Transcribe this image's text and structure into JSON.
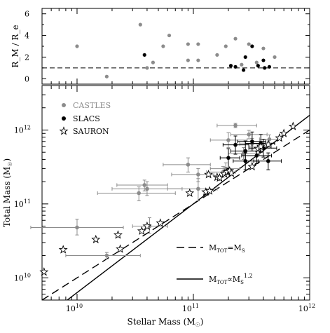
{
  "chart_data": [
    {
      "type": "scatter",
      "panel": "top",
      "ylabel": "R_M / R_e",
      "yscale": "linear",
      "xscale": "log",
      "ylim": [
        -0.5,
        6.5
      ],
      "xlim": [
        5000000000.0,
        1000000000000.0
      ],
      "ticks_y": [
        "6",
        "4",
        "2",
        "0"
      ],
      "reference_line": {
        "y": 1,
        "style": "dashed"
      },
      "series": [
        {
          "name": "CASTLES",
          "color": "#8c8c8c",
          "points": [
            {
              "x": 10000000000.0,
              "y": 3.0
            },
            {
              "x": 18000000000.0,
              "y": 0.2
            },
            {
              "x": 35000000000.0,
              "y": 5.0
            },
            {
              "x": 40000000000.0,
              "y": 1.0
            },
            {
              "x": 45000000000.0,
              "y": 1.5
            },
            {
              "x": 55000000000.0,
              "y": 3.0
            },
            {
              "x": 62000000000.0,
              "y": 4.0
            },
            {
              "x": 90000000000.0,
              "y": 3.2
            },
            {
              "x": 90000000000.0,
              "y": 1.7
            },
            {
              "x": 110000000000.0,
              "y": 3.2
            },
            {
              "x": 110000000000.0,
              "y": 1.7
            },
            {
              "x": 160000000000.0,
              "y": 2.2
            },
            {
              "x": 190000000000.0,
              "y": 3.0
            },
            {
              "x": 230000000000.0,
              "y": 3.7
            },
            {
              "x": 260000000000.0,
              "y": 1.3
            },
            {
              "x": 300000000000.0,
              "y": 3.2
            },
            {
              "x": 350000000000.0,
              "y": 1.5
            },
            {
              "x": 400000000000.0,
              "y": 2.8
            },
            {
              "x": 500000000000.0,
              "y": 2.0
            }
          ]
        },
        {
          "name": "SLACS",
          "color": "#000000",
          "points": [
            {
              "x": 38000000000.0,
              "y": 2.2
            },
            {
              "x": 210000000000.0,
              "y": 1.2
            },
            {
              "x": 230000000000.0,
              "y": 1.1
            },
            {
              "x": 270000000000.0,
              "y": 0.8
            },
            {
              "x": 280000000000.0,
              "y": 2.0
            },
            {
              "x": 320000000000.0,
              "y": 3.0
            },
            {
              "x": 360000000000.0,
              "y": 1.2
            },
            {
              "x": 400000000000.0,
              "y": 1.7
            },
            {
              "x": 410000000000.0,
              "y": 1.0
            },
            {
              "x": 450000000000.0,
              "y": 1.1
            }
          ]
        }
      ]
    },
    {
      "type": "scatter",
      "panel": "main",
      "xlabel_main": "Stellar Mass",
      "xlabel_unit": "(M",
      "xlabel_sub": "☉",
      "ylabel_main": "Total Mass",
      "ylabel_unit": "(M",
      "ylabel_sub": "☉",
      "xscale": "log",
      "yscale": "log",
      "xlim": [
        5000000000.0,
        1000000000000.0
      ],
      "ylim": [
        5000000000.0,
        4000000000000.0
      ],
      "ticks_x": [
        {
          "value": 10000000000.0,
          "base": "10",
          "exp": "10"
        },
        {
          "value": 100000000000.0,
          "base": "10",
          "exp": "11"
        },
        {
          "value": 1000000000000.0,
          "base": "10",
          "exp": "12"
        }
      ],
      "ticks_y": [
        {
          "value": 10000000000.0,
          "base": "10",
          "exp": "10"
        },
        {
          "value": 100000000000.0,
          "base": "10",
          "exp": "11"
        },
        {
          "value": 1000000000000.0,
          "base": "10",
          "exp": "12"
        }
      ],
      "legend": [
        {
          "name": "CASTLES",
          "marker": "dot",
          "color": "#8c8c8c"
        },
        {
          "name": "SLACS",
          "marker": "dot",
          "color": "#000000"
        },
        {
          "name": "SAURON",
          "marker": "star",
          "color": "#000000"
        }
      ],
      "series": [
        {
          "name": "CASTLES",
          "color": "#8c8c8c",
          "points": [
            {
              "x": 10000000000.0,
              "y": 48000000000.0,
              "xerr": [
                4000000000.0,
                25000000000.0
              ],
              "yerr": [
                38000000000.0,
                62000000000.0
              ]
            },
            {
              "x": 18000000000.0,
              "y": 20000000000.0,
              "xerr": [
                8000000000.0,
                35000000000.0
              ],
              "yerr": [
                18000000000.0,
                22000000000.0
              ]
            },
            {
              "x": 34000000000.0,
              "y": 140000000000.0,
              "xerr": [
                15000000000.0,
                70000000000.0
              ],
              "yerr": [
                110000000000.0,
                170000000000.0
              ]
            },
            {
              "x": 38000000000.0,
              "y": 180000000000.0,
              "xerr": [
                22000000000.0,
                60000000000.0
              ],
              "yerr": [
                150000000000.0,
                210000000000.0
              ]
            },
            {
              "x": 40000000000.0,
              "y": 160000000000.0,
              "xerr": [
                20000000000.0,
                80000000000.0
              ],
              "yerr": [
                130000000000.0,
                200000000000.0
              ]
            },
            {
              "x": 42000000000.0,
              "y": 50000000000.0,
              "xerr": [
                30000000000.0,
                60000000000.0
              ],
              "yerr": [
                40000000000.0,
                65000000000.0
              ]
            },
            {
              "x": 90000000000.0,
              "y": 340000000000.0,
              "xerr": [
                55000000000.0,
                140000000000.0
              ],
              "yerr": [
                270000000000.0,
                420000000000.0
              ]
            },
            {
              "x": 110000000000.0,
              "y": 250000000000.0,
              "xerr": [
                65000000000.0,
                150000000000.0
              ],
              "yerr": [
                200000000000.0,
                300000000000.0
              ]
            },
            {
              "x": 110000000000.0,
              "y": 160000000000.0,
              "xerr": [
                60000000000.0,
                160000000000.0
              ],
              "yerr": [
                110000000000.0,
                220000000000.0
              ]
            },
            {
              "x": 180000000000.0,
              "y": 270000000000.0,
              "xerr": [
                130000000000.0,
                230000000000.0
              ],
              "yerr": [
                230000000000.0,
                320000000000.0
              ]
            },
            {
              "x": 190000000000.0,
              "y": 300000000000.0,
              "xerr": [
                140000000000.0,
                250000000000.0
              ],
              "yerr": [
                250000000000.0,
                360000000000.0
              ]
            },
            {
              "x": 200000000000.0,
              "y": 730000000000.0,
              "xerr": [
                140000000000.0,
                290000000000.0
              ],
              "yerr": [
                580000000000.0,
                920000000000.0
              ]
            },
            {
              "x": 230000000000.0,
              "y": 1150000000000.0,
              "xerr": [
                160000000000.0,
                350000000000.0
              ],
              "yerr": [
                1080000000000.0,
                1230000000000.0
              ]
            },
            {
              "x": 270000000000.0,
              "y": 480000000000.0,
              "xerr": [
                200000000000.0,
                370000000000.0
              ],
              "yerr": [
                400000000000.0,
                580000000000.0
              ]
            },
            {
              "x": 300000000000.0,
              "y": 870000000000.0,
              "xerr": [
                210000000000.0,
                430000000000.0
              ],
              "yerr": [
                760000000000.0,
                990000000000.0
              ]
            },
            {
              "x": 320000000000.0,
              "y": 650000000000.0,
              "xerr": [
                250000000000.0,
                420000000000.0
              ],
              "yerr": [
                550000000000.0,
                770000000000.0
              ]
            },
            {
              "x": 380000000000.0,
              "y": 590000000000.0,
              "xerr": [
                300000000000.0,
                470000000000.0
              ],
              "yerr": [
                500000000000.0,
                700000000000.0
              ]
            },
            {
              "x": 450000000000.0,
              "y": 750000000000.0,
              "xerr": [
                370000000000.0,
                540000000000.0
              ],
              "yerr": [
                650000000000.0,
                860000000000.0
              ]
            }
          ]
        },
        {
          "name": "SLACS",
          "color": "#000000",
          "points": [
            {
              "x": 200000000000.0,
              "y": 420000000000.0,
              "xerr": [
                170000000000.0,
                250000000000.0
              ],
              "yerr": [
                300000000000.0,
                560000000000.0
              ]
            },
            {
              "x": 230000000000.0,
              "y": 630000000000.0,
              "xerr": [
                180000000000.0,
                300000000000.0
              ],
              "yerr": [
                470000000000.0,
                830000000000.0
              ]
            },
            {
              "x": 280000000000.0,
              "y": 520000000000.0,
              "xerr": [
                210000000000.0,
                370000000000.0
              ],
              "yerr": [
                380000000000.0,
                710000000000.0
              ]
            },
            {
              "x": 280000000000.0,
              "y": 380000000000.0,
              "xerr": [
                220000000000.0,
                360000000000.0
              ],
              "yerr": [
                290000000000.0,
                490000000000.0
              ]
            },
            {
              "x": 320000000000.0,
              "y": 700000000000.0,
              "xerr": [
                240000000000.0,
                420000000000.0
              ],
              "yerr": [
                520000000000.0,
                940000000000.0
              ]
            },
            {
              "x": 350000000000.0,
              "y": 450000000000.0,
              "xerr": [
                260000000000.0,
                470000000000.0
              ],
              "yerr": [
                350000000000.0,
                580000000000.0
              ]
            },
            {
              "x": 380000000000.0,
              "y": 660000000000.0,
              "xerr": [
                280000000000.0,
                500000000000.0
              ],
              "yerr": [
                500000000000.0,
                870000000000.0
              ]
            },
            {
              "x": 400000000000.0,
              "y": 570000000000.0,
              "xerr": [
                300000000000.0,
                520000000000.0
              ],
              "yerr": [
                430000000000.0,
                750000000000.0
              ]
            },
            {
              "x": 440000000000.0,
              "y": 380000000000.0,
              "xerr": [
                330000000000.0,
                570000000000.0
              ],
              "yerr": [
                290000000000.0,
                490000000000.0
              ]
            }
          ]
        },
        {
          "name": "SAURON",
          "color": "#000000",
          "marker": "star",
          "points": [
            {
              "x": 5200000000.0,
              "y": 12000000000.0
            },
            {
              "x": 7600000000.0,
              "y": 24000000000.0
            },
            {
              "x": 14500000000.0,
              "y": 33000000000.0
            },
            {
              "x": 22500000000.0,
              "y": 38000000000.0
            },
            {
              "x": 23500000000.0,
              "y": 24500000000.0
            },
            {
              "x": 36000000000.0,
              "y": 43000000000.0
            },
            {
              "x": 40000000000.0,
              "y": 50000000000.0
            },
            {
              "x": 52000000000.0,
              "y": 55000000000.0
            },
            {
              "x": 93000000000.0,
              "y": 140000000000.0
            },
            {
              "x": 128000000000.0,
              "y": 145000000000.0
            },
            {
              "x": 138000000000.0,
              "y": 150000000000.0
            },
            {
              "x": 135000000000.0,
              "y": 250000000000.0
            },
            {
              "x": 160000000000.0,
              "y": 230000000000.0
            },
            {
              "x": 168000000000.0,
              "y": 225000000000.0
            },
            {
              "x": 185000000000.0,
              "y": 255000000000.0
            },
            {
              "x": 195000000000.0,
              "y": 270000000000.0
            },
            {
              "x": 205000000000.0,
              "y": 280000000000.0
            },
            {
              "x": 212000000000.0,
              "y": 260000000000.0
            },
            {
              "x": 320000000000.0,
              "y": 320000000000.0
            },
            {
              "x": 360000000000.0,
              "y": 560000000000.0
            },
            {
              "x": 380000000000.0,
              "y": 600000000000.0
            },
            {
              "x": 440000000000.0,
              "y": 640000000000.0
            },
            {
              "x": 550000000000.0,
              "y": 780000000000.0
            },
            {
              "x": 600000000000.0,
              "y": 900000000000.0
            },
            {
              "x": 720000000000.0,
              "y": 1120000000000.0
            }
          ]
        }
      ],
      "lines": [
        {
          "label_main": "M",
          "label_sub_tot": "TOT",
          "label_eq": "=M",
          "label_sub_s": "S",
          "kind": "equality",
          "style": "dashed"
        },
        {
          "label_main": "M",
          "label_sub_tot": "TOT",
          "label_prop": "∝M",
          "label_sub_s": "S",
          "label_exp": "1.2",
          "kind": "power",
          "exponent": 1.2,
          "style": "solid"
        }
      ]
    }
  ]
}
